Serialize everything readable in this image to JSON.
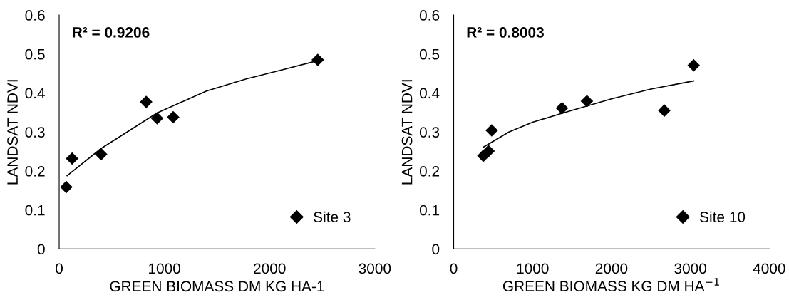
{
  "chart_data": [
    {
      "type": "scatter",
      "xlabel": "GREEN BIOMASS DM KG HA-1",
      "ylabel": "LANDSAT NDVI",
      "annotations": [
        "R² = 0.9206"
      ],
      "xlim": [
        0,
        3000
      ],
      "xticks": [
        0,
        1000,
        2000,
        3000
      ],
      "ylim": [
        0,
        0.6
      ],
      "yticks": [
        0,
        0.1,
        0.2,
        0.3,
        0.4,
        0.5,
        0.6
      ],
      "grid": false,
      "legend": "bottom right",
      "series": [
        {
          "name": "Site 3",
          "marker": "diamond",
          "color": "#000000",
          "x": [
            68,
            123,
            399,
            827,
            931,
            1084,
            2458
          ],
          "values": [
            0.159,
            0.232,
            0.243,
            0.377,
            0.335,
            0.338,
            0.485
          ]
        },
        {
          "type": "line",
          "marker": "none",
          "color": "#000000",
          "x": [
            75,
            400,
            931,
            1400,
            1778,
            2100,
            2458
          ],
          "values": [
            0.188,
            0.258,
            0.349,
            0.405,
            0.436,
            0.458,
            0.483
          ]
        }
      ]
    },
    {
      "type": "scatter",
      "xlabel": "GREEN BIOMASS KG DM HA$^{−1}$",
      "ylabel": "LANDSAT NDVI",
      "annotations": [
        "R² = 0.8003"
      ],
      "xlim": [
        0,
        4000
      ],
      "xticks": [
        0,
        1000,
        2000,
        3000,
        4000
      ],
      "ylim": [
        0,
        0.6
      ],
      "yticks": [
        0,
        0.1,
        0.2,
        0.3,
        0.4,
        0.5,
        0.6
      ],
      "grid": false,
      "legend": "bottom right",
      "series": [
        {
          "name": "Site 10",
          "marker": "diamond",
          "color": "#000000",
          "x": [
            376,
            442,
            482,
            1373,
            1689,
            2670,
            3042
          ],
          "values": [
            0.239,
            0.251,
            0.304,
            0.361,
            0.379,
            0.355,
            0.471
          ]
        },
        {
          "type": "line",
          "marker": "none",
          "color": "#000000",
          "x": [
            376,
            700,
            1000,
            1373,
            2000,
            2500,
            3042
          ],
          "values": [
            0.261,
            0.3,
            0.325,
            0.348,
            0.385,
            0.41,
            0.431
          ]
        }
      ]
    }
  ]
}
